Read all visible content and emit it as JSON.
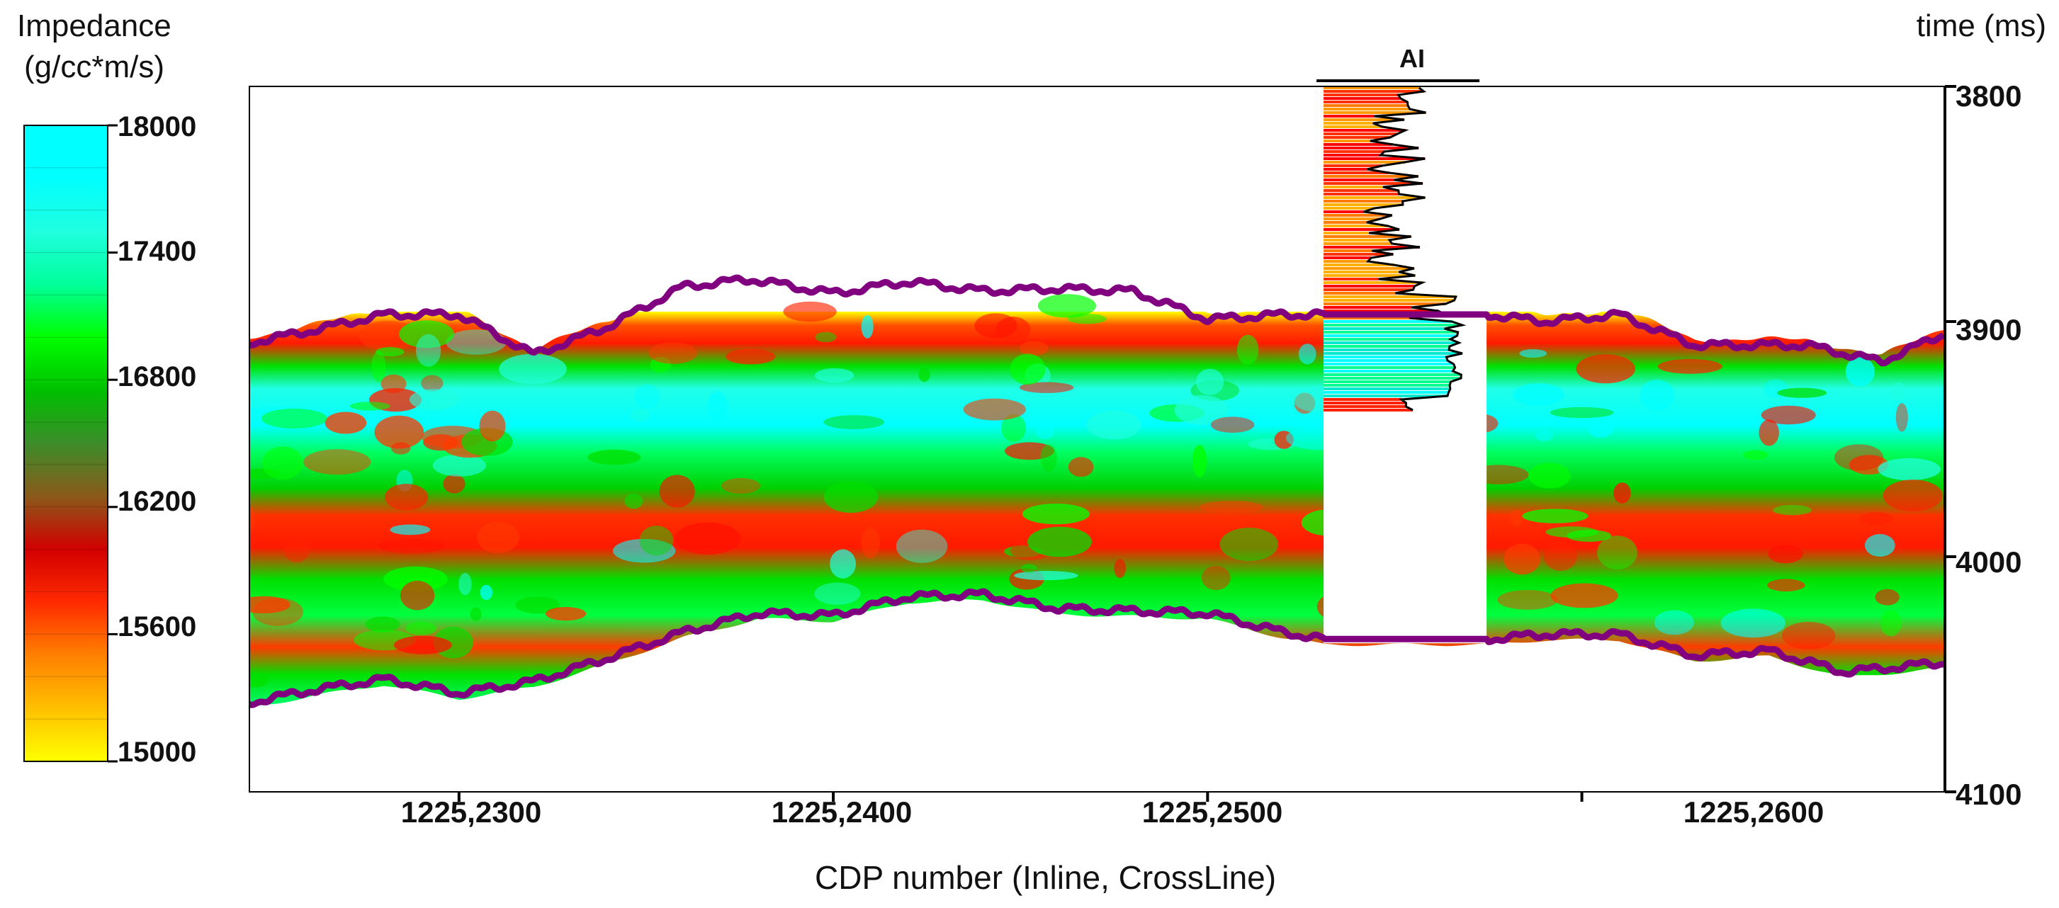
{
  "chart_data": {
    "type": "heatmap",
    "title": "",
    "colorbar": {
      "title_line1": "Impedance",
      "title_line2": "(g/cc*m/s)",
      "ticks": [
        "18000",
        "17400",
        "16800",
        "16200",
        "15600",
        "15000"
      ],
      "range": [
        15000,
        18000
      ],
      "colors": [
        "#ffff00",
        "#ffc000",
        "#ff8000",
        "#ff2a00",
        "#d20000",
        "#8a5a1a",
        "#3c8c2a",
        "#00c000",
        "#00ff00",
        "#00ff9a",
        "#20ffe0",
        "#00ffff",
        "#00ffff"
      ]
    },
    "xlabel": "CDP number (Inline, CrossLine)",
    "ylabel": "time (ms)",
    "x_tick_labels": [
      "1225,2300",
      "1225,2400",
      "1225,2500",
      "1225,2600"
    ],
    "x_ticks": [
      2300,
      2400,
      2500,
      2600
    ],
    "xlim": [
      2244,
      2697
    ],
    "ylim": [
      3800,
      4100
    ],
    "y_ticks": [
      "3800",
      "3900",
      "4000",
      "4100"
    ],
    "y_tick_values": [
      3800,
      3900,
      4000,
      4100
    ],
    "well": {
      "label": "AI",
      "crossline": 2531,
      "log_time_range": [
        3800,
        3938
      ]
    },
    "horizons": [
      {
        "name": "top",
        "color": "#800080",
        "x": [
          2244,
          2260,
          2280,
          2300,
          2320,
          2340,
          2360,
          2378,
          2400,
          2420,
          2440,
          2460,
          2480,
          2500,
          2520,
          2531,
          2575,
          2590,
          2610,
          2630,
          2650,
          2660,
          2680,
          2697
        ],
        "time": [
          3909,
          3904,
          3897,
          3897,
          3914,
          3902,
          3885,
          3882,
          3888,
          3883,
          3887,
          3886,
          3887,
          3899,
          3897,
          3897,
          3897,
          3900,
          3897,
          3910,
          3910,
          3910,
          3917,
          3905
        ]
      },
      {
        "name": "bottom",
        "color": "#800080",
        "x": [
          2244,
          2260,
          2280,
          2300,
          2320,
          2340,
          2360,
          2380,
          2400,
          2420,
          2440,
          2460,
          2480,
          2500,
          2520,
          2531,
          2575,
          2590,
          2610,
          2630,
          2650,
          2670,
          2697
        ],
        "time": [
          4062,
          4057,
          4052,
          4058,
          4053,
          4043,
          4032,
          4024,
          4025,
          4017,
          4016,
          4022,
          4023,
          4024,
          4032,
          4035,
          4035,
          4033,
          4033,
          4042,
          4040,
          4049,
          4045
        ]
      }
    ]
  }
}
